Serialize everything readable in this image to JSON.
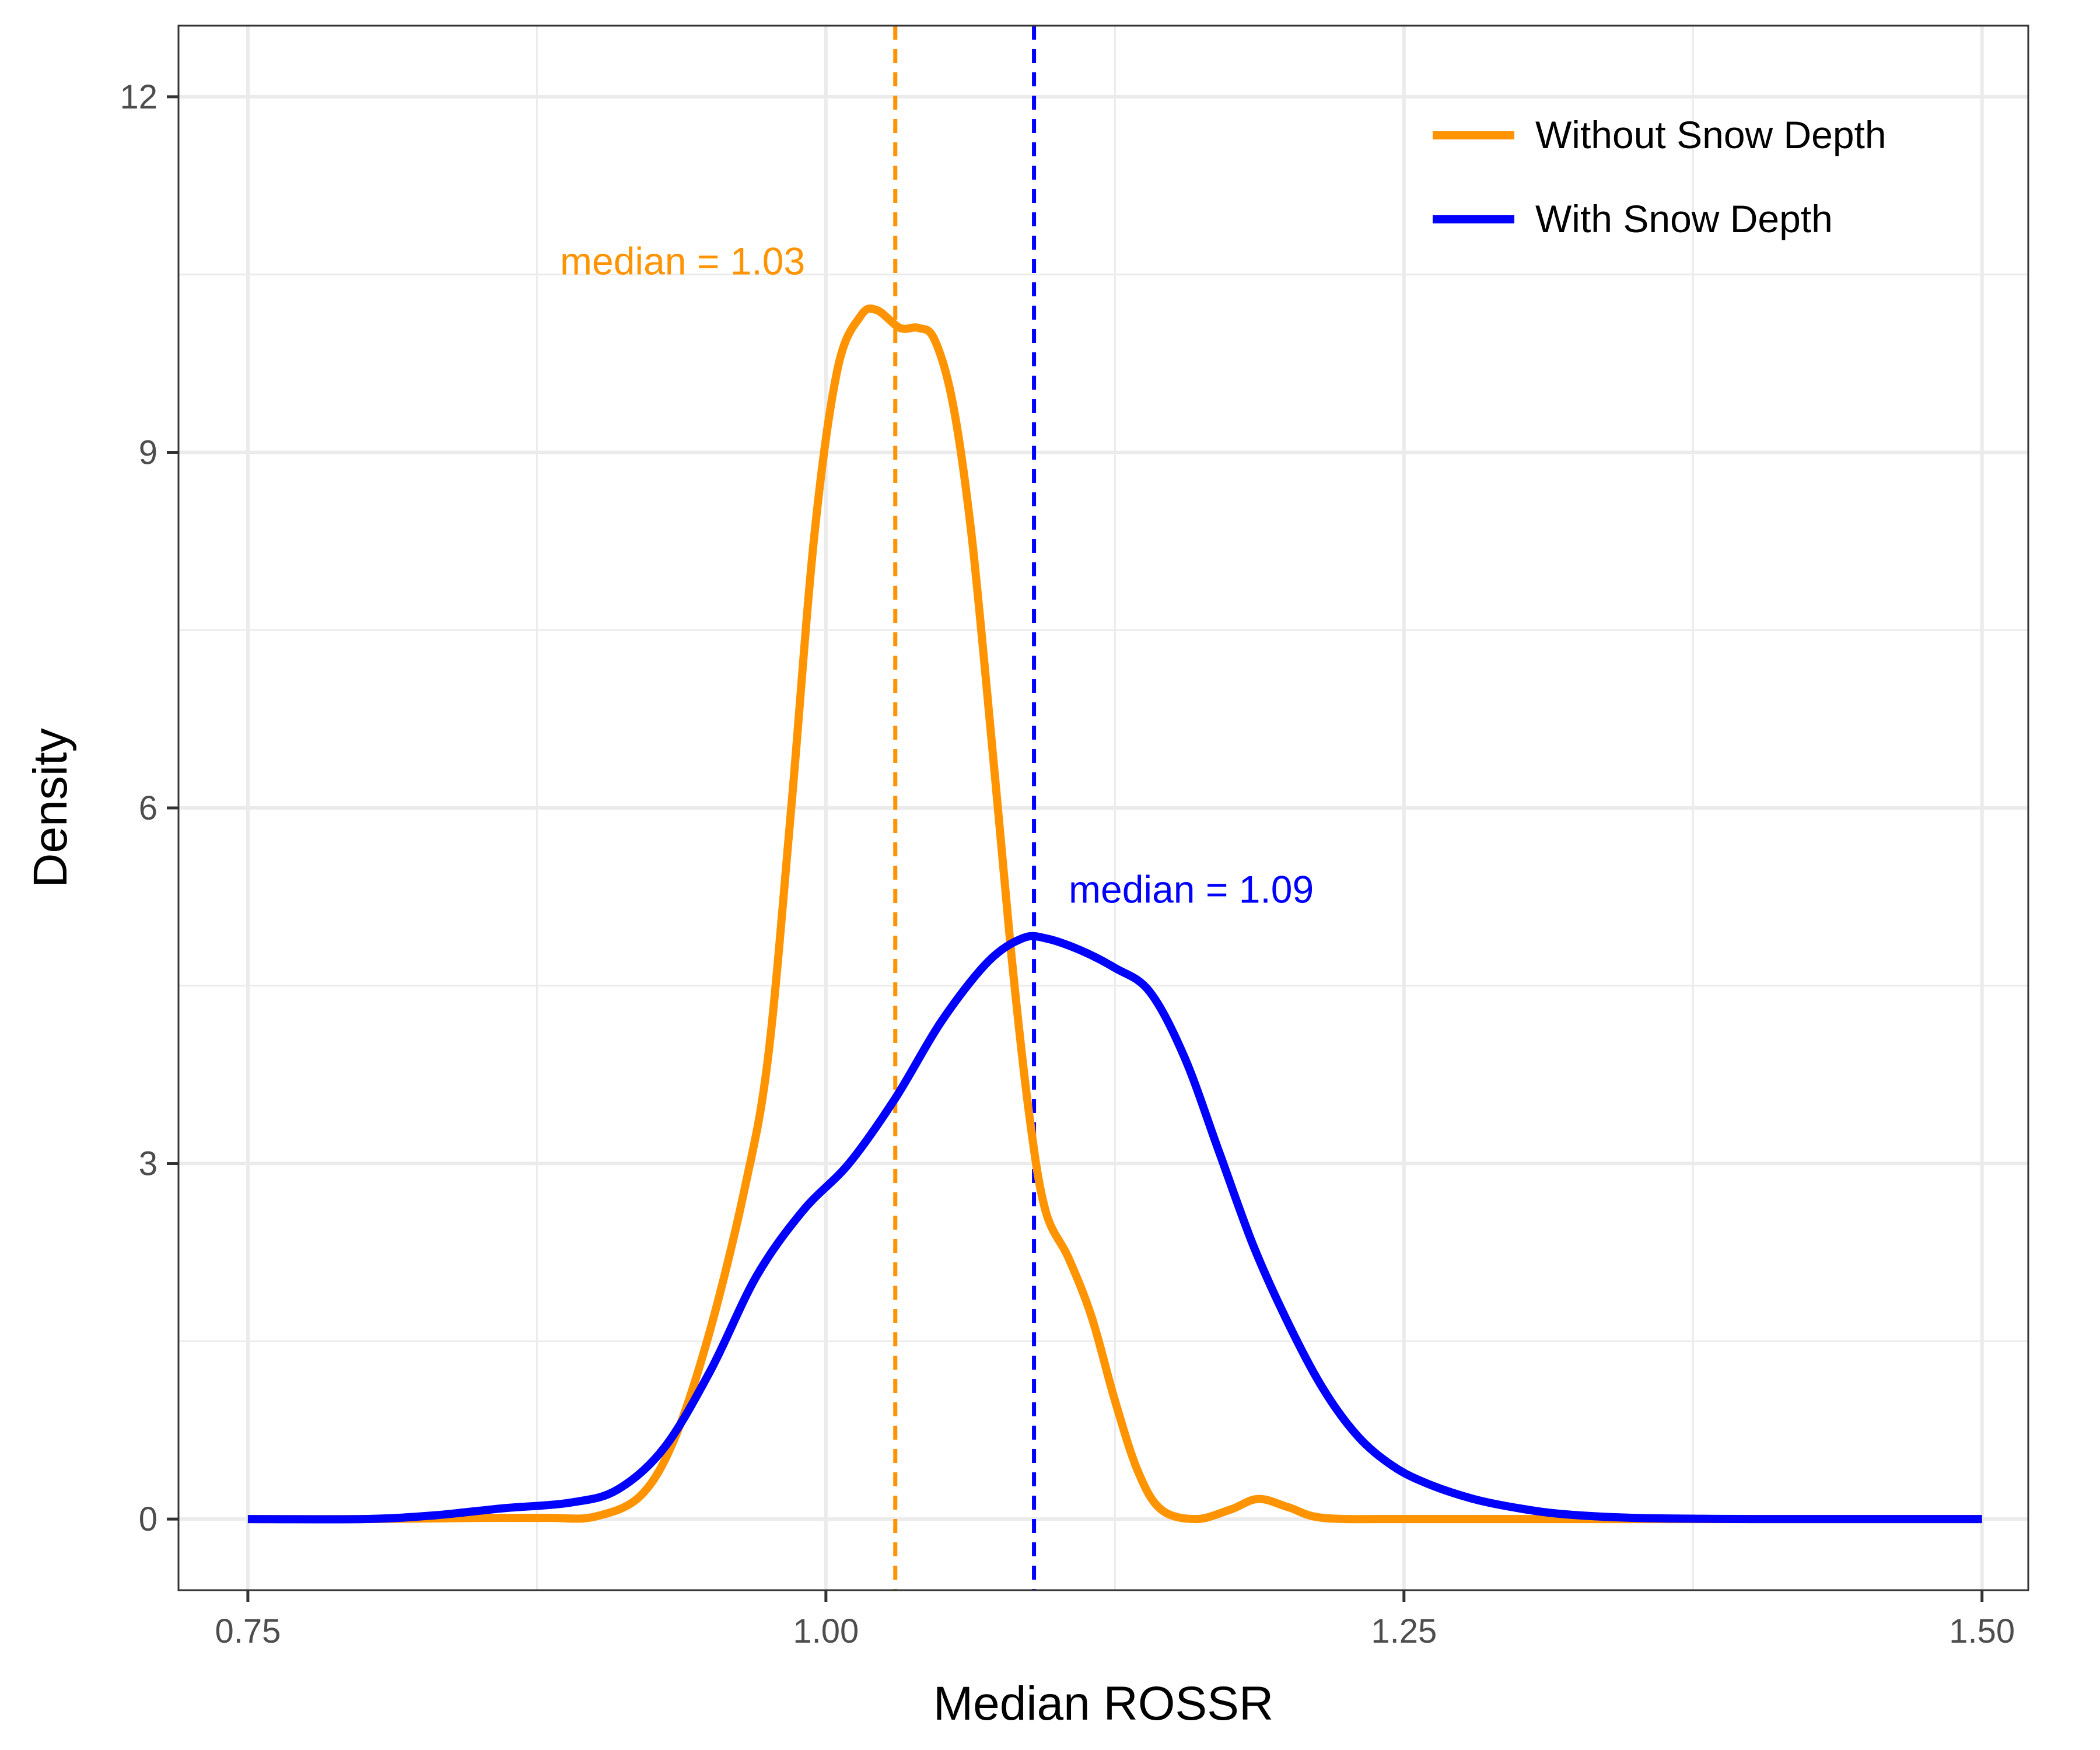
{
  "chart_data": {
    "type": "line",
    "title": "",
    "xlabel": "Median ROSSR",
    "ylabel": "Density",
    "xlim": [
      0.72,
      1.52
    ],
    "ylim": [
      -0.6,
      12.6
    ],
    "x_ticks": [
      0.75,
      1.0,
      1.25,
      1.5
    ],
    "x_tick_labels": [
      "0.75",
      "1.00",
      "1.25",
      "1.50"
    ],
    "y_ticks": [
      0,
      3,
      6,
      9,
      12
    ],
    "y_tick_labels": [
      "0",
      "3",
      "6",
      "9",
      "12"
    ],
    "grid": true,
    "legend_position": "top-right",
    "series": [
      {
        "name": "Without Snow Depth",
        "color": "#FF9300",
        "points": [
          [
            0.75,
            0.0
          ],
          [
            0.8,
            0.0
          ],
          [
            0.85,
            0.01
          ],
          [
            0.88,
            0.01
          ],
          [
            0.9,
            0.02
          ],
          [
            0.92,
            0.2
          ],
          [
            0.935,
            0.7
          ],
          [
            0.95,
            1.6
          ],
          [
            0.965,
            2.8
          ],
          [
            0.975,
            3.9
          ],
          [
            0.985,
            6.0
          ],
          [
            0.995,
            8.3
          ],
          [
            1.005,
            9.7
          ],
          [
            1.015,
            10.15
          ],
          [
            1.022,
            10.2
          ],
          [
            1.032,
            10.05
          ],
          [
            1.04,
            10.05
          ],
          [
            1.047,
            9.95
          ],
          [
            1.055,
            9.4
          ],
          [
            1.063,
            8.3
          ],
          [
            1.072,
            6.5
          ],
          [
            1.08,
            4.8
          ],
          [
            1.088,
            3.4
          ],
          [
            1.095,
            2.6
          ],
          [
            1.105,
            2.2
          ],
          [
            1.115,
            1.7
          ],
          [
            1.125,
            1.0
          ],
          [
            1.135,
            0.4
          ],
          [
            1.145,
            0.08
          ],
          [
            1.16,
            0.0
          ],
          [
            1.175,
            0.08
          ],
          [
            1.187,
            0.17
          ],
          [
            1.2,
            0.1
          ],
          [
            1.215,
            0.01
          ],
          [
            1.25,
            0.0
          ],
          [
            1.3,
            0.0
          ],
          [
            1.35,
            0.0
          ],
          [
            1.4,
            0.0
          ],
          [
            1.45,
            0.0
          ],
          [
            1.5,
            0.0
          ]
        ]
      },
      {
        "name": "With Snow Depth",
        "color": "#0000FF",
        "points": [
          [
            0.75,
            0.0
          ],
          [
            0.8,
            0.0
          ],
          [
            0.83,
            0.03
          ],
          [
            0.86,
            0.09
          ],
          [
            0.89,
            0.14
          ],
          [
            0.91,
            0.25
          ],
          [
            0.93,
            0.6
          ],
          [
            0.95,
            1.25
          ],
          [
            0.97,
            2.05
          ],
          [
            0.99,
            2.6
          ],
          [
            1.01,
            3.0
          ],
          [
            1.03,
            3.55
          ],
          [
            1.05,
            4.2
          ],
          [
            1.07,
            4.7
          ],
          [
            1.085,
            4.9
          ],
          [
            1.095,
            4.9
          ],
          [
            1.11,
            4.8
          ],
          [
            1.125,
            4.65
          ],
          [
            1.14,
            4.45
          ],
          [
            1.155,
            3.9
          ],
          [
            1.17,
            3.1
          ],
          [
            1.185,
            2.3
          ],
          [
            1.2,
            1.65
          ],
          [
            1.215,
            1.1
          ],
          [
            1.23,
            0.7
          ],
          [
            1.245,
            0.45
          ],
          [
            1.26,
            0.3
          ],
          [
            1.28,
            0.17
          ],
          [
            1.3,
            0.09
          ],
          [
            1.32,
            0.04
          ],
          [
            1.35,
            0.01
          ],
          [
            1.4,
            0.0
          ],
          [
            1.45,
            0.0
          ],
          [
            1.5,
            0.0
          ]
        ]
      }
    ],
    "reference_lines": [
      {
        "x": 1.03,
        "color": "#FF9300",
        "style": "dashed"
      },
      {
        "x": 1.09,
        "color": "#0000FF",
        "style": "dashed"
      }
    ],
    "annotations": [
      {
        "text": "median = 1.03",
        "x": 0.885,
        "y": 10.5,
        "color": "#FF9300"
      },
      {
        "text": "median = 1.09",
        "x": 1.105,
        "y": 5.2,
        "color": "#0000FF"
      }
    ]
  }
}
